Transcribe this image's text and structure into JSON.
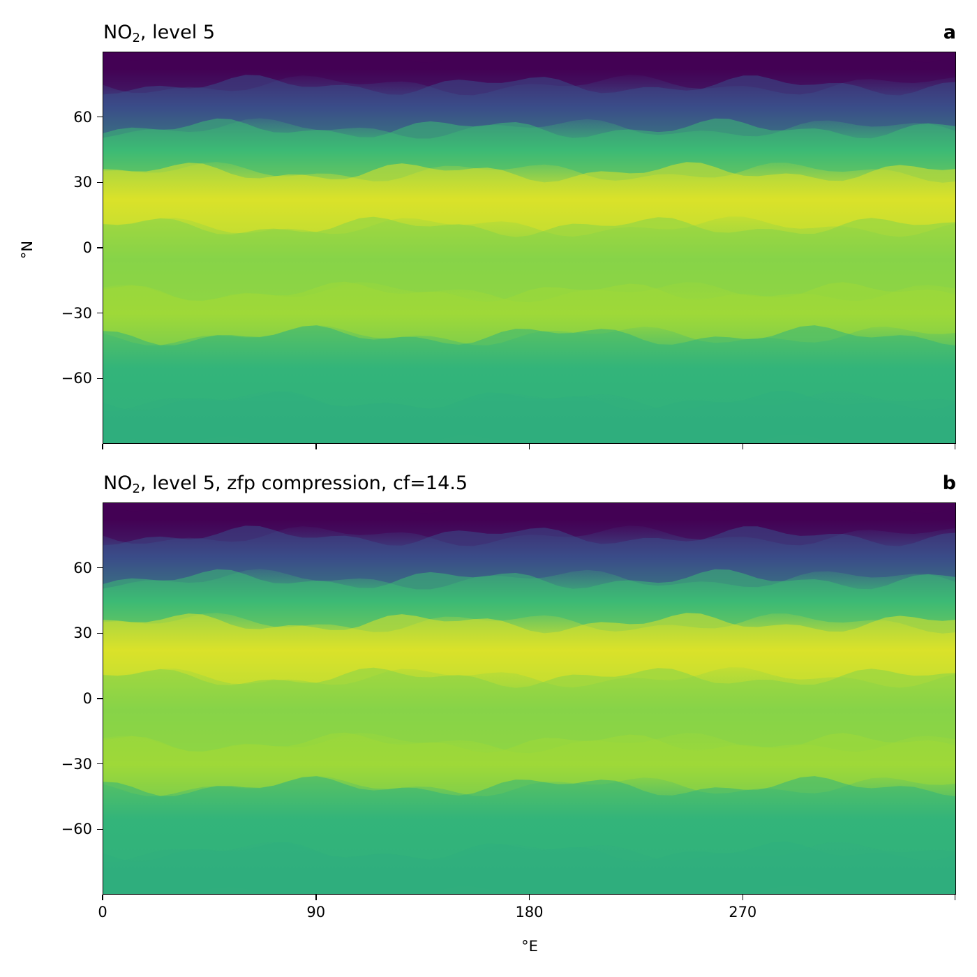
{
  "panels": [
    {
      "title_main": "NO",
      "title_sub": "2",
      "title_rest": ", level 5",
      "panel_label": "a",
      "show_x_ticklabels": false,
      "show_ylabel": true
    },
    {
      "title_main": "NO",
      "title_sub": "2",
      "title_rest": ", level 5, zfp compression, cf=14.5",
      "panel_label": "b",
      "show_x_ticklabels": true,
      "show_ylabel": false
    }
  ],
  "ylabel": "°N",
  "xlabel": "°E",
  "yticks": [
    "60",
    "30",
    "0",
    "−30",
    "−60"
  ],
  "xticks": [
    "0",
    "90",
    "180",
    "270"
  ],
  "colormap": "viridis",
  "chart_data": [
    {
      "type": "heatmap",
      "title": "NO2, level 5",
      "xlabel": "",
      "ylabel": "°N",
      "xlim": [
        0,
        360
      ],
      "ylim": [
        -90,
        90
      ],
      "yticks": [
        60,
        30,
        0,
        -30,
        -60
      ],
      "xticks": [
        0,
        90,
        180,
        270
      ],
      "colormap": "viridis",
      "latitude_bands": [
        {
          "lat_range": [
            75,
            90
          ],
          "level": 0.0
        },
        {
          "lat_range": [
            55,
            75
          ],
          "level": 0.3
        },
        {
          "lat_range": [
            35,
            55
          ],
          "level": 0.65
        },
        {
          "lat_range": [
            10,
            35
          ],
          "level": 0.95
        },
        {
          "lat_range": [
            -20,
            10
          ],
          "level": 0.82
        },
        {
          "lat_range": [
            -40,
            -20
          ],
          "level": 0.86
        },
        {
          "lat_range": [
            -70,
            -40
          ],
          "level": 0.62
        },
        {
          "lat_range": [
            -90,
            -70
          ],
          "level": 0.6
        }
      ]
    },
    {
      "type": "heatmap",
      "title": "NO2, level 5, zfp compression, cf=14.5",
      "xlabel": "°E",
      "ylabel": "",
      "xlim": [
        0,
        360
      ],
      "ylim": [
        -90,
        90
      ],
      "yticks": [
        60,
        30,
        0,
        -30,
        -60
      ],
      "xticks": [
        0,
        90,
        180,
        270
      ],
      "colormap": "viridis",
      "latitude_bands": [
        {
          "lat_range": [
            75,
            90
          ],
          "level": 0.0
        },
        {
          "lat_range": [
            55,
            75
          ],
          "level": 0.3
        },
        {
          "lat_range": [
            35,
            55
          ],
          "level": 0.65
        },
        {
          "lat_range": [
            10,
            35
          ],
          "level": 0.95
        },
        {
          "lat_range": [
            -20,
            10
          ],
          "level": 0.82
        },
        {
          "lat_range": [
            -40,
            -20
          ],
          "level": 0.86
        },
        {
          "lat_range": [
            -70,
            -40
          ],
          "level": 0.62
        },
        {
          "lat_range": [
            -90,
            -70
          ],
          "level": 0.6
        }
      ]
    }
  ]
}
